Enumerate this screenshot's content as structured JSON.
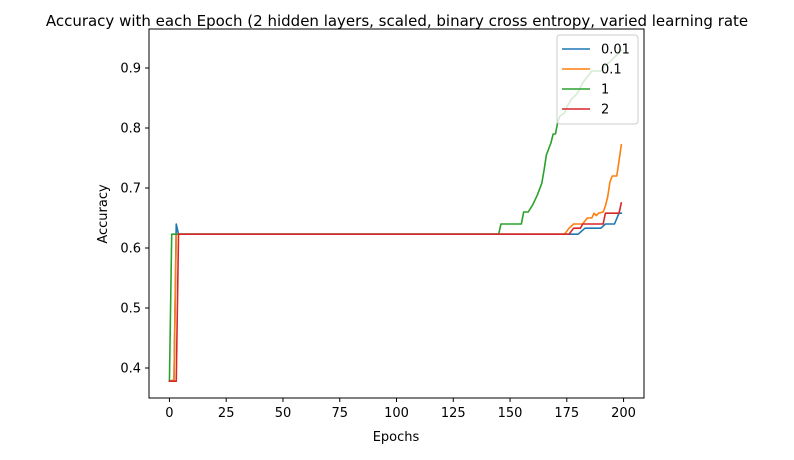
{
  "chart_data": {
    "type": "line",
    "title": "Accuracy with each Epoch (2 hidden layers, scaled, binary cross entropy, varied learning rate",
    "xlabel": "Epochs",
    "ylabel": "Accuracy",
    "xlim": [
      -9,
      209
    ],
    "ylim": [
      0.35,
      0.965
    ],
    "xticks": [
      0,
      25,
      50,
      75,
      100,
      125,
      150,
      175,
      200
    ],
    "yticks": [
      0.4,
      0.5,
      0.6,
      0.7,
      0.8,
      0.9
    ],
    "grid": false,
    "legend": "top-right",
    "series": [
      {
        "name": "0.01",
        "color": "#1f77b4",
        "points": [
          [
            0,
            0.378
          ],
          [
            2,
            0.38
          ],
          [
            3,
            0.64
          ],
          [
            4,
            0.623
          ],
          [
            150,
            0.623
          ],
          [
            180,
            0.623
          ],
          [
            183,
            0.633
          ],
          [
            190,
            0.633
          ],
          [
            192,
            0.64
          ],
          [
            196,
            0.64
          ],
          [
            198,
            0.658
          ],
          [
            199,
            0.658
          ]
        ]
      },
      {
        "name": "0.1",
        "color": "#ff7f0e",
        "points": [
          [
            0,
            0.378
          ],
          [
            2,
            0.38
          ],
          [
            3,
            0.623
          ],
          [
            174,
            0.623
          ],
          [
            175,
            0.628
          ],
          [
            176,
            0.633
          ],
          [
            178,
            0.64
          ],
          [
            182,
            0.64
          ],
          [
            184,
            0.65
          ],
          [
            186,
            0.65
          ],
          [
            187,
            0.658
          ],
          [
            188,
            0.654
          ],
          [
            189,
            0.658
          ],
          [
            191,
            0.66
          ],
          [
            192,
            0.67
          ],
          [
            193,
            0.685
          ],
          [
            194,
            0.71
          ],
          [
            195,
            0.72
          ],
          [
            197,
            0.72
          ],
          [
            198,
            0.745
          ],
          [
            199,
            0.772
          ]
        ]
      },
      {
        "name": "1",
        "color": "#2ca02c",
        "points": [
          [
            0,
            0.378
          ],
          [
            1,
            0.623
          ],
          [
            145,
            0.623
          ],
          [
            146,
            0.64
          ],
          [
            150,
            0.64
          ],
          [
            155,
            0.64
          ],
          [
            156,
            0.66
          ],
          [
            158,
            0.66
          ],
          [
            160,
            0.672
          ],
          [
            162,
            0.688
          ],
          [
            164,
            0.708
          ],
          [
            165,
            0.73
          ],
          [
            166,
            0.755
          ],
          [
            168,
            0.775
          ],
          [
            169,
            0.79
          ],
          [
            170,
            0.79
          ],
          [
            171,
            0.81
          ],
          [
            172,
            0.82
          ],
          [
            174,
            0.825
          ],
          [
            175,
            0.835
          ],
          [
            177,
            0.848
          ],
          [
            179,
            0.855
          ],
          [
            180,
            0.86
          ],
          [
            182,
            0.875
          ],
          [
            184,
            0.885
          ],
          [
            186,
            0.895
          ],
          [
            190,
            0.895
          ],
          [
            192,
            0.905
          ],
          [
            194,
            0.91
          ],
          [
            196,
            0.918
          ],
          [
            198,
            0.925
          ],
          [
            199,
            0.93
          ]
        ]
      },
      {
        "name": "2",
        "color": "#d62728",
        "points": [
          [
            0,
            0.378
          ],
          [
            3,
            0.378
          ],
          [
            4,
            0.623
          ],
          [
            174,
            0.623
          ],
          [
            176,
            0.623
          ],
          [
            178,
            0.633
          ],
          [
            181,
            0.633
          ],
          [
            182,
            0.64
          ],
          [
            191,
            0.64
          ],
          [
            192,
            0.658
          ],
          [
            198,
            0.658
          ],
          [
            199,
            0.675
          ]
        ]
      }
    ]
  }
}
